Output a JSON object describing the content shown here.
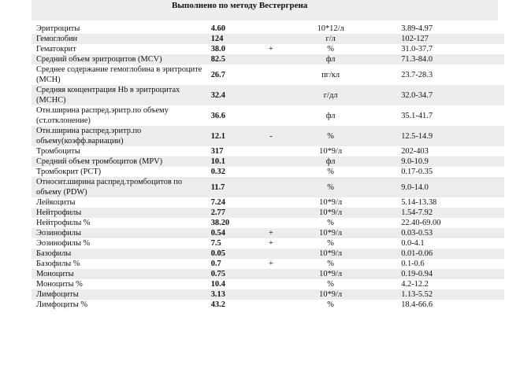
{
  "header": {
    "title": "Выполнено по методу Вестергрена"
  },
  "rows": [
    {
      "name": "Эритроциты",
      "value": "4.60",
      "flag": "",
      "unit": "10*12/л",
      "ref": "3.89-4.97",
      "shaded": false
    },
    {
      "name": "Гемоглобин",
      "value": "124",
      "flag": "",
      "unit": "г/л",
      "ref": "102-127",
      "shaded": true
    },
    {
      "name": "Гематокрит",
      "value": "38.0",
      "flag": "+",
      "unit": "%",
      "ref": "31.0-37.7",
      "shaded": false
    },
    {
      "name": "Средний объем эритроцитов (MCV)",
      "value": "82.5",
      "flag": "",
      "unit": "фл",
      "ref": "71.3-84.0",
      "shaded": true
    },
    {
      "name": "Среднее содержание гемоглобина в эритроците (MCH)",
      "value": "26.7",
      "flag": "",
      "unit": "пг/кл",
      "ref": "23.7-28.3",
      "shaded": false
    },
    {
      "name": "Средняя концентрация Hb в эритроцитах (MCHC)",
      "value": "32.4",
      "flag": "",
      "unit": "г/дл",
      "ref": "32.0-34.7",
      "shaded": true
    },
    {
      "name": "Отн.ширина распред.эритр.по объему (ст.отклонение)",
      "value": "36.6",
      "flag": "",
      "unit": "фл",
      "ref": "35.1-41.7",
      "shaded": false
    },
    {
      "name": "Отн.ширина распред.эритр.по объему(коэфф.вариации)",
      "value": "12.1",
      "flag": "-",
      "unit": "%",
      "ref": "12.5-14.9",
      "shaded": true
    },
    {
      "name": "Тромбоциты",
      "value": "317",
      "flag": "",
      "unit": "10*9/л",
      "ref": "202-403",
      "shaded": false
    },
    {
      "name": "Средний объем тромбоцитов (MPV)",
      "value": "10.1",
      "flag": "",
      "unit": "фл",
      "ref": "9.0-10.9",
      "shaded": true
    },
    {
      "name": "Тромбокрит (PCT)",
      "value": "0.32",
      "flag": "",
      "unit": "%",
      "ref": "0.17-0.35",
      "shaded": false
    },
    {
      "name": "Относит.ширина распред.тромбоцитов по объему (PDW)",
      "value": "11.7",
      "flag": "",
      "unit": "%",
      "ref": "9.0-14.0",
      "shaded": true
    },
    {
      "name": "Лейкоциты",
      "value": "7.24",
      "flag": "",
      "unit": "10*9/л",
      "ref": "5.14-13.38",
      "shaded": false
    },
    {
      "name": "Нейтрофилы",
      "value": "2.77",
      "flag": "",
      "unit": "10*9/л",
      "ref": "1.54-7.92",
      "shaded": true
    },
    {
      "name": "Нейтрофилы %",
      "value": "38.20",
      "flag": "",
      "unit": "%",
      "ref": "22.40-69.00",
      "shaded": false
    },
    {
      "name": "Эозинофилы",
      "value": "0.54",
      "flag": "+",
      "unit": "10*9/л",
      "ref": "0.03-0.53",
      "shaded": true
    },
    {
      "name": "Эозинофилы %",
      "value": "7.5",
      "flag": "+",
      "unit": "%",
      "ref": "0.0-4.1",
      "shaded": false
    },
    {
      "name": "Базофилы",
      "value": "0.05",
      "flag": "",
      "unit": "10*9/л",
      "ref": "0.01-0.06",
      "shaded": true
    },
    {
      "name": "Базофилы %",
      "value": "0.7",
      "flag": "+",
      "unit": "%",
      "ref": "0.1-0.6",
      "shaded": false
    },
    {
      "name": "Моноциты",
      "value": "0.75",
      "flag": "",
      "unit": "10*9/л",
      "ref": "0.19-0.94",
      "shaded": true
    },
    {
      "name": "Моноциты %",
      "value": "10.4",
      "flag": "",
      "unit": "%",
      "ref": "4.2-12.2",
      "shaded": false
    },
    {
      "name": "Лимфоциты",
      "value": "3.13",
      "flag": "",
      "unit": "10*9/л",
      "ref": "1.13-5.52",
      "shaded": true
    },
    {
      "name": "Лимфоциты %",
      "value": "43.2",
      "flag": "",
      "unit": "%",
      "ref": "18.4-66.6",
      "shaded": false
    }
  ]
}
